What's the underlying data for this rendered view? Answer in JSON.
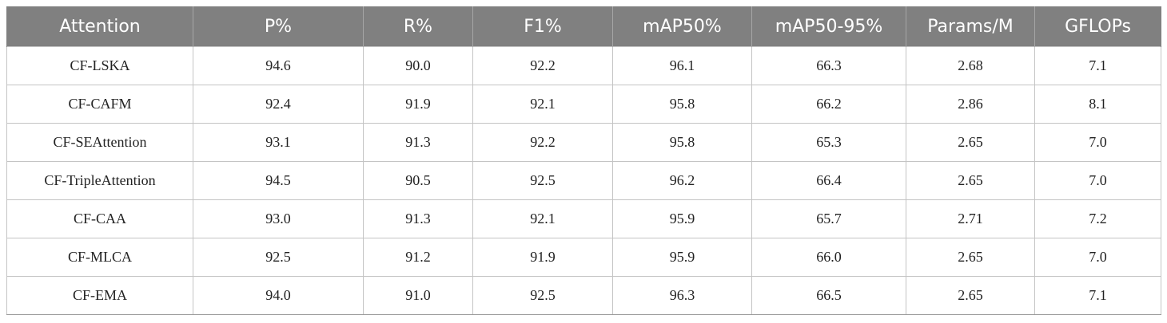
{
  "table": {
    "columns": [
      "Attention",
      "P%",
      "R%",
      "F1%",
      "mAP50%",
      "mAP50-95%",
      "Params/M",
      "GFLOPs"
    ],
    "rows": [
      [
        "CF-LSKA",
        "94.6",
        "90.0",
        "92.2",
        "96.1",
        "66.3",
        "2.68",
        "7.1"
      ],
      [
        "CF-CAFM",
        "92.4",
        "91.9",
        "92.1",
        "95.8",
        "66.2",
        "2.86",
        "8.1"
      ],
      [
        "CF-SEAttention",
        "93.1",
        "91.3",
        "92.2",
        "95.8",
        "65.3",
        "2.65",
        "7.0"
      ],
      [
        "CF-TripleAttention",
        "94.5",
        "90.5",
        "92.5",
        "96.2",
        "66.4",
        "2.65",
        "7.0"
      ],
      [
        "CF-CAA",
        "93.0",
        "91.3",
        "92.1",
        "95.9",
        "65.7",
        "2.71",
        "7.2"
      ],
      [
        "CF-MLCA",
        "92.5",
        "91.2",
        "91.9",
        "95.9",
        "66.0",
        "2.65",
        "7.0"
      ],
      [
        "CF-EMA",
        "94.0",
        "91.0",
        "92.5",
        "96.3",
        "66.5",
        "2.65",
        "7.1"
      ]
    ]
  },
  "colors": {
    "header_bg": "#808080",
    "header_text": "#ffffff",
    "cell_text": "#222222",
    "grid": "#c4c4c4"
  }
}
